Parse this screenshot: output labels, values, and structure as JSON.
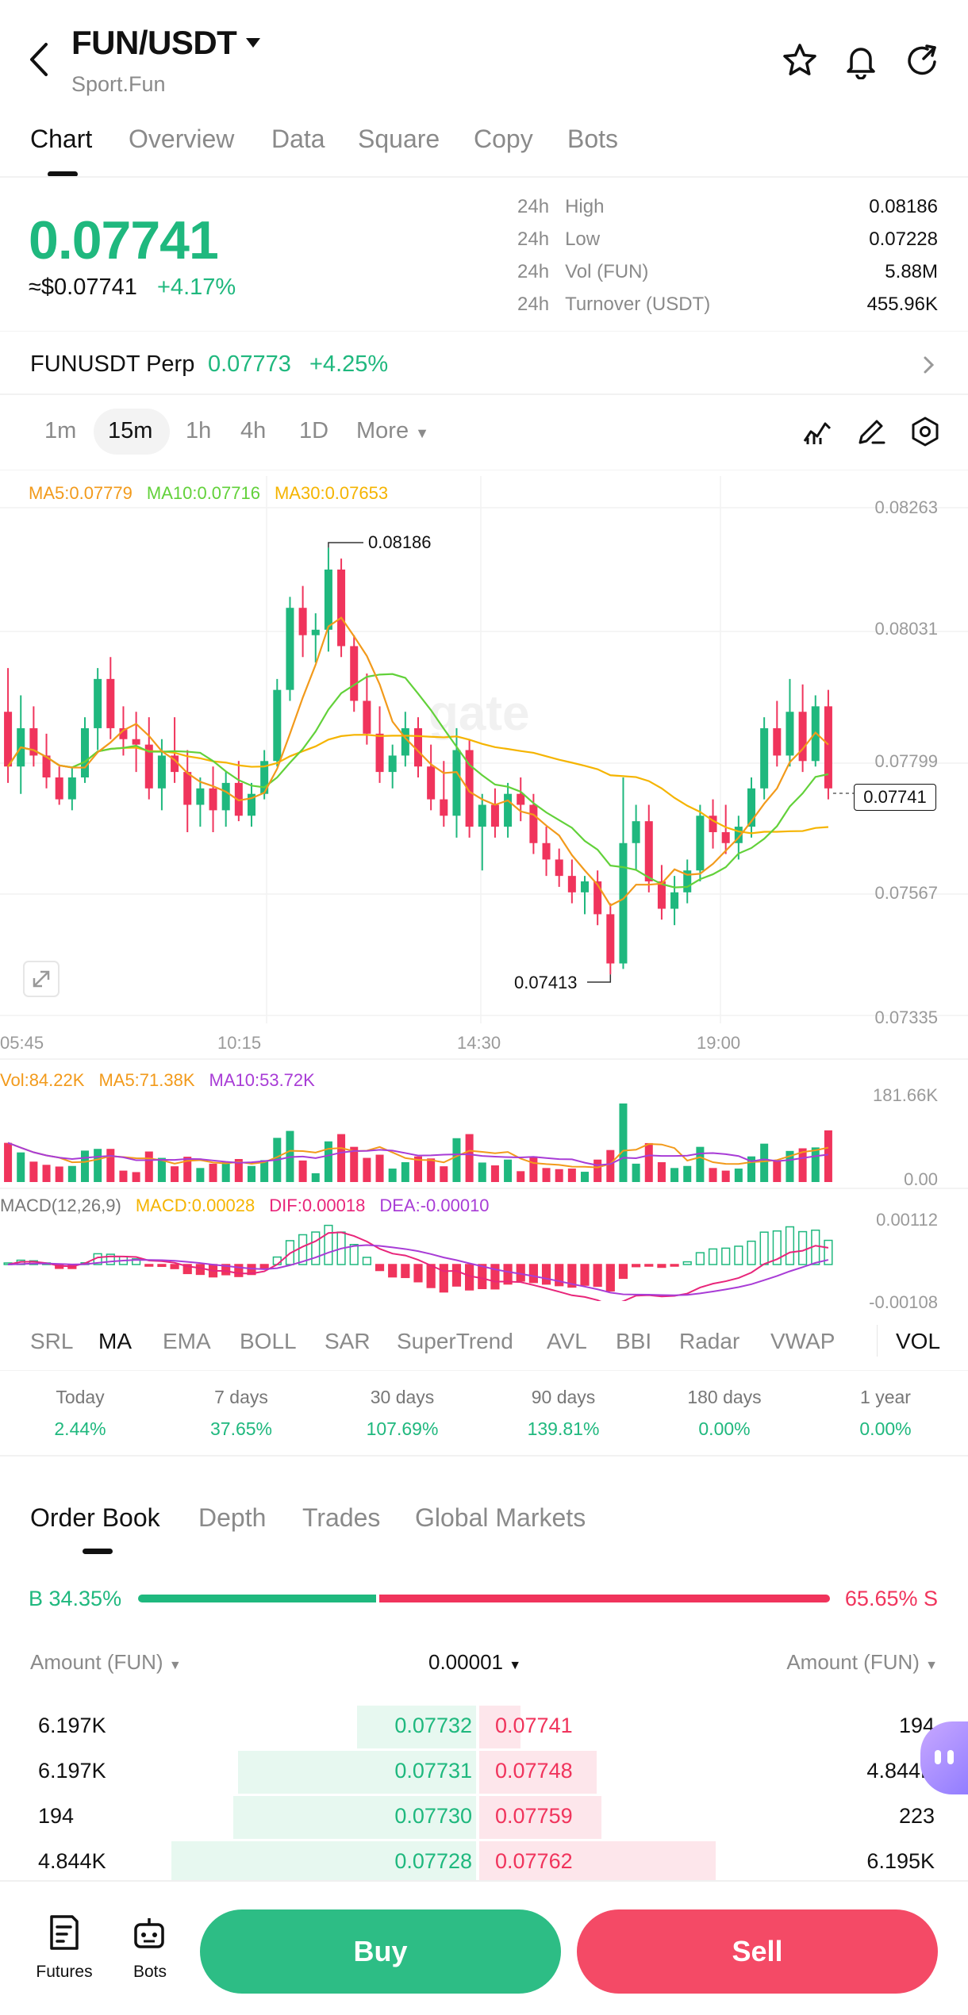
{
  "header": {
    "title": "FUN/USDT",
    "subtitle": "Sport.Fun"
  },
  "tabs": [
    "Chart",
    "Overview",
    "Data",
    "Square",
    "Copy",
    "Bots"
  ],
  "ticker": {
    "last_price": "0.07741",
    "usd_price": "≈$0.07741",
    "change_pct": "+4.17%",
    "stats": [
      {
        "period": "24h",
        "label": "High",
        "value": "0.08186"
      },
      {
        "period": "24h",
        "label": "Low",
        "value": "0.07228"
      },
      {
        "period": "24h",
        "label": "Vol (FUN)",
        "value": "5.88M"
      },
      {
        "period": "24h",
        "label": "Turnover (USDT)",
        "value": "455.96K"
      }
    ]
  },
  "perp": {
    "name": "FUNUSDT Perp",
    "price": "0.07773",
    "change": "+4.25%"
  },
  "intervals": [
    "1m",
    "15m",
    "1h",
    "4h",
    "1D",
    "More"
  ],
  "active_interval": "15m",
  "colors": {
    "up": "#1fb87e",
    "down": "#f0345c",
    "ma5": "#f29a1b",
    "ma10": "#62d13a",
    "ma30": "#f5b400",
    "macd_dif": "#e8257a",
    "macd_dea": "#a83cd6"
  },
  "chart_data": {
    "type": "candlestick",
    "ma_legend": {
      "ma5": "MA5:0.07779",
      "ma10": "MA10:0.07716",
      "ma30": "MA30:0.07653"
    },
    "y_ticks": [
      "0.08263",
      "0.08031",
      "0.07799",
      "0.07567",
      "0.07335"
    ],
    "ylim": [
      0.07335,
      0.08263
    ],
    "x_ticks": [
      "05:45",
      "10:15",
      "14:30",
      "19:00"
    ],
    "current_price_tag": "0.07741",
    "high_marker": "0.08186",
    "low_marker": "0.07413",
    "candles": [
      [
        0.0789,
        0.0797,
        0.0776,
        0.0779
      ],
      [
        0.0779,
        0.0792,
        0.0774,
        0.0786
      ],
      [
        0.0786,
        0.079,
        0.0779,
        0.0781
      ],
      [
        0.0781,
        0.0785,
        0.0775,
        0.0777
      ],
      [
        0.0777,
        0.0779,
        0.0772,
        0.0773
      ],
      [
        0.0773,
        0.0779,
        0.0771,
        0.0777
      ],
      [
        0.0777,
        0.0788,
        0.0776,
        0.0786
      ],
      [
        0.0786,
        0.0797,
        0.0782,
        0.0795
      ],
      [
        0.0795,
        0.0799,
        0.0784,
        0.0786
      ],
      [
        0.0786,
        0.079,
        0.0781,
        0.0784
      ],
      [
        0.0784,
        0.0789,
        0.0778,
        0.0783
      ],
      [
        0.0783,
        0.0788,
        0.0773,
        0.0775
      ],
      [
        0.0775,
        0.0784,
        0.0771,
        0.0781
      ],
      [
        0.0781,
        0.0788,
        0.0776,
        0.0778
      ],
      [
        0.0778,
        0.0782,
        0.0767,
        0.0772
      ],
      [
        0.0772,
        0.0777,
        0.0768,
        0.0775
      ],
      [
        0.0775,
        0.0779,
        0.0767,
        0.0771
      ],
      [
        0.0771,
        0.0778,
        0.0768,
        0.0776
      ],
      [
        0.0776,
        0.078,
        0.0769,
        0.077
      ],
      [
        0.077,
        0.0776,
        0.0768,
        0.0774
      ],
      [
        0.0774,
        0.0782,
        0.0773,
        0.078
      ],
      [
        0.078,
        0.0795,
        0.0779,
        0.0793
      ],
      [
        0.0793,
        0.081,
        0.0791,
        0.0808
      ],
      [
        0.0808,
        0.0812,
        0.0799,
        0.0803
      ],
      [
        0.0803,
        0.0807,
        0.0798,
        0.0804
      ],
      [
        0.0804,
        0.0819,
        0.08,
        0.0815
      ],
      [
        0.0815,
        0.0817,
        0.0799,
        0.0801
      ],
      [
        0.0801,
        0.0803,
        0.0789,
        0.0791
      ],
      [
        0.0791,
        0.0796,
        0.0783,
        0.0785
      ],
      [
        0.0785,
        0.079,
        0.0776,
        0.0778
      ],
      [
        0.0778,
        0.0783,
        0.0775,
        0.0781
      ],
      [
        0.0781,
        0.0789,
        0.0779,
        0.0786
      ],
      [
        0.0786,
        0.0788,
        0.0777,
        0.0779
      ],
      [
        0.0779,
        0.0783,
        0.0771,
        0.0773
      ],
      [
        0.0773,
        0.078,
        0.0768,
        0.077
      ],
      [
        0.077,
        0.0786,
        0.0766,
        0.0782
      ],
      [
        0.0782,
        0.0784,
        0.0766,
        0.0768
      ],
      [
        0.0768,
        0.0774,
        0.076,
        0.0772
      ],
      [
        0.0772,
        0.0775,
        0.0766,
        0.0768
      ],
      [
        0.0768,
        0.0776,
        0.0766,
        0.0774
      ],
      [
        0.0774,
        0.0777,
        0.0769,
        0.0772
      ],
      [
        0.0772,
        0.0774,
        0.0763,
        0.0765
      ],
      [
        0.0765,
        0.0768,
        0.0759,
        0.0762
      ],
      [
        0.0762,
        0.0764,
        0.0757,
        0.0759
      ],
      [
        0.0759,
        0.0762,
        0.0754,
        0.0756
      ],
      [
        0.0756,
        0.0759,
        0.0752,
        0.0758
      ],
      [
        0.0758,
        0.076,
        0.075,
        0.0752
      ],
      [
        0.0752,
        0.0754,
        0.0741,
        0.0743
      ],
      [
        0.0743,
        0.0777,
        0.0742,
        0.0765
      ],
      [
        0.0765,
        0.0772,
        0.076,
        0.0769
      ],
      [
        0.0769,
        0.0772,
        0.0756,
        0.0758
      ],
      [
        0.0758,
        0.0761,
        0.0751,
        0.0753
      ],
      [
        0.0753,
        0.0759,
        0.075,
        0.0756
      ],
      [
        0.0756,
        0.0762,
        0.0754,
        0.076
      ],
      [
        0.076,
        0.0772,
        0.0758,
        0.077
      ],
      [
        0.077,
        0.0773,
        0.0764,
        0.0767
      ],
      [
        0.0767,
        0.0772,
        0.0763,
        0.0765
      ],
      [
        0.0765,
        0.077,
        0.0762,
        0.0768
      ],
      [
        0.0768,
        0.0777,
        0.0766,
        0.0775
      ],
      [
        0.0775,
        0.0788,
        0.0773,
        0.0786
      ],
      [
        0.0786,
        0.0791,
        0.0779,
        0.0781
      ],
      [
        0.0781,
        0.0795,
        0.0779,
        0.0789
      ],
      [
        0.0789,
        0.0794,
        0.0778,
        0.078
      ],
      [
        0.078,
        0.0792,
        0.0779,
        0.079
      ],
      [
        0.079,
        0.0793,
        0.0773,
        0.0775
      ]
    ],
    "volume": {
      "legend": {
        "vol": "Vol:84.22K",
        "ma5": "MA5:71.38K",
        "ma10": "MA10:53.72K"
      },
      "y_ticks": [
        "181.66K",
        "0.00"
      ],
      "ymax": 181.66
    },
    "macd": {
      "legend": {
        "name": "MACD(12,26,9)",
        "macd": "MACD:0.00028",
        "dif": "DIF:0.00018",
        "dea": "DEA:-0.00010"
      },
      "y_ticks": [
        "0.00112",
        "-0.00108"
      ],
      "ylim": [
        -0.00108,
        0.00112
      ]
    }
  },
  "indicators": [
    "SRL",
    "MA",
    "EMA",
    "BOLL",
    "SAR",
    "SuperTrend",
    "AVL",
    "BBI",
    "Radar",
    "VWAP",
    "VOL"
  ],
  "active_indicator": "MA",
  "performance": [
    {
      "label": "Today",
      "value": "2.44%"
    },
    {
      "label": "7 days",
      "value": "37.65%"
    },
    {
      "label": "30 days",
      "value": "107.69%"
    },
    {
      "label": "90 days",
      "value": "139.81%"
    },
    {
      "label": "180 days",
      "value": "0.00%"
    },
    {
      "label": "1 year",
      "value": "0.00%"
    }
  ],
  "orderbook": {
    "tabs": [
      "Order Book",
      "Depth",
      "Trades",
      "Global Markets"
    ],
    "buy_ratio": "B 34.35%",
    "sell_ratio": "65.65% S",
    "buy_fraction": 0.3435,
    "amount_header_left": "Amount (FUN)",
    "precision": "0.00001",
    "amount_header_right": "Amount (FUN)",
    "rows": [
      {
        "bid_amount": "6.197K",
        "bid_price": "0.07732",
        "ask_price": "0.07741",
        "ask_amount": "194",
        "bid_depth": 0.25,
        "ask_depth": 0.02
      },
      {
        "bid_amount": "6.197K",
        "bid_price": "0.07731",
        "ask_price": "0.07748",
        "ask_amount": "4.844K",
        "bid_depth": 0.5,
        "ask_depth": 0.18
      },
      {
        "bid_amount": "194",
        "bid_price": "0.07730",
        "ask_price": "0.07759",
        "ask_amount": "223",
        "bid_depth": 0.51,
        "ask_depth": 0.19
      },
      {
        "bid_amount": "4.844K",
        "bid_price": "0.07728",
        "ask_price": "0.07762",
        "ask_amount": "6.195K",
        "bid_depth": 0.64,
        "ask_depth": 0.43
      }
    ]
  },
  "bottom_nav": {
    "futures_label": "Futures",
    "bots_label": "Bots",
    "buy_label": "Buy",
    "sell_label": "Sell"
  }
}
